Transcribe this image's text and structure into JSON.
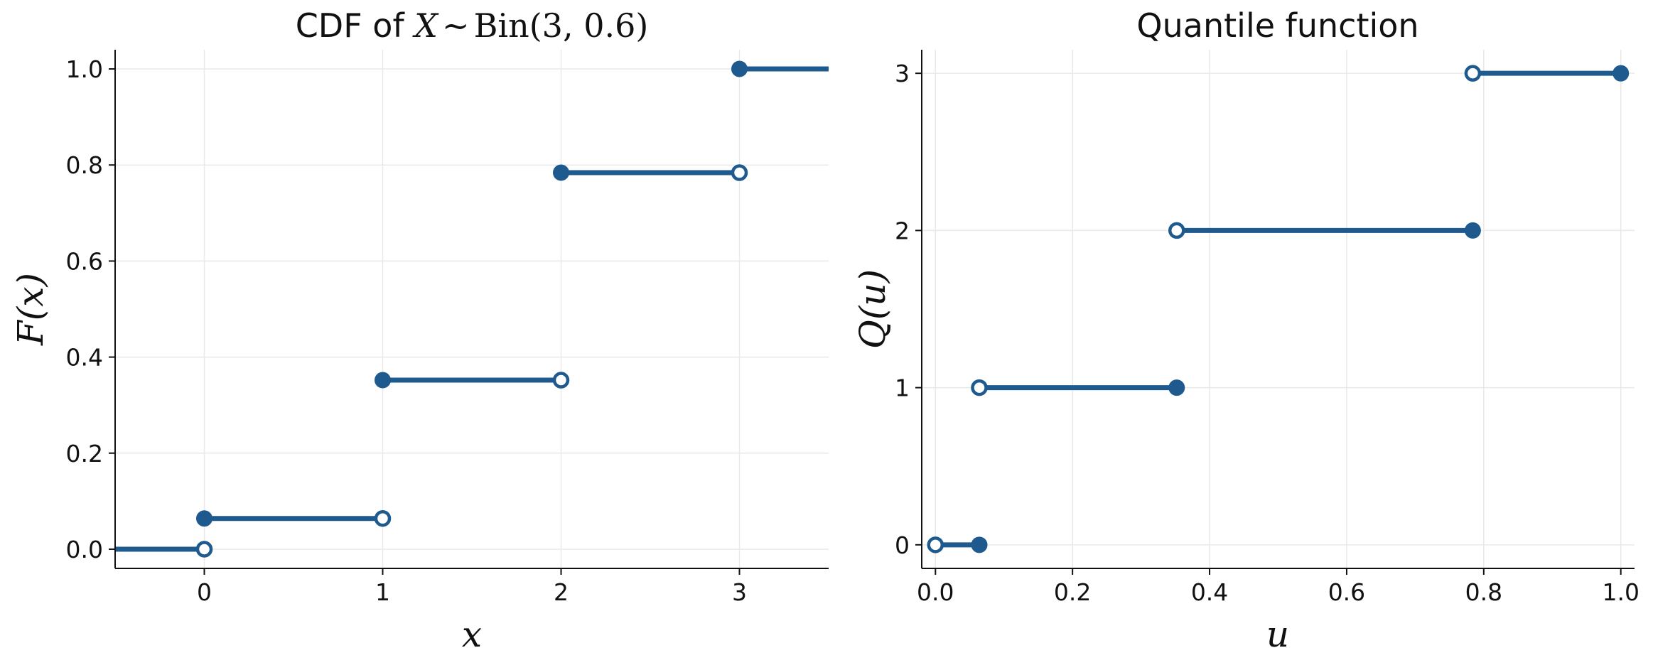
{
  "chart_data": [
    {
      "type": "line",
      "subtype": "step",
      "title_prefix": "CDF of ",
      "title_math": {
        "var": "X",
        "sim": "~",
        "dist": "Bin",
        "args": "(3, 0.6)"
      },
      "xlabel": "x",
      "ylabel": "F(x)",
      "xlim": [
        -0.5,
        3.5
      ],
      "ylim": [
        -0.04,
        1.04
      ],
      "xticks": [
        0,
        1,
        2,
        3
      ],
      "xtick_labels": [
        "0",
        "1",
        "2",
        "3"
      ],
      "yticks": [
        0.0,
        0.2,
        0.4,
        0.6,
        0.8,
        1.0
      ],
      "ytick_labels": [
        "0.0",
        "0.2",
        "0.4",
        "0.6",
        "0.8",
        "1.0"
      ],
      "grid": true,
      "color": "#1f5a8f",
      "segments": [
        {
          "x0": -0.5,
          "x1": 0,
          "y": 0.0
        },
        {
          "x0": 0,
          "x1": 1,
          "y": 0.064
        },
        {
          "x0": 1,
          "x1": 2,
          "y": 0.352
        },
        {
          "x0": 2,
          "x1": 3,
          "y": 0.784
        },
        {
          "x0": 3,
          "x1": 3.5,
          "y": 1.0
        }
      ],
      "closed_points": [
        [
          0,
          0.064
        ],
        [
          1,
          0.352
        ],
        [
          2,
          0.784
        ],
        [
          3,
          1.0
        ]
      ],
      "open_points": [
        [
          0,
          0.0
        ],
        [
          1,
          0.064
        ],
        [
          2,
          0.352
        ],
        [
          3,
          0.784
        ]
      ]
    },
    {
      "type": "line",
      "subtype": "step",
      "title": "Quantile function",
      "xlabel": "u",
      "ylabel": "Q(u)",
      "xlim": [
        -0.02,
        1.02
      ],
      "ylim": [
        -0.15,
        3.15
      ],
      "xticks": [
        0.0,
        0.2,
        0.4,
        0.6,
        0.8,
        1.0
      ],
      "xtick_labels": [
        "0.0",
        "0.2",
        "0.4",
        "0.6",
        "0.8",
        "1.0"
      ],
      "yticks": [
        0,
        1,
        2,
        3
      ],
      "ytick_labels": [
        "0",
        "1",
        "2",
        "3"
      ],
      "grid": true,
      "color": "#1f5a8f",
      "segments": [
        {
          "x0": 0.0,
          "x1": 0.064,
          "y": 0
        },
        {
          "x0": 0.064,
          "x1": 0.352,
          "y": 1
        },
        {
          "x0": 0.352,
          "x1": 0.784,
          "y": 2
        },
        {
          "x0": 0.784,
          "x1": 1.0,
          "y": 3
        }
      ],
      "closed_points": [
        [
          0.064,
          0
        ],
        [
          0.352,
          1
        ],
        [
          0.784,
          2
        ],
        [
          1.0,
          3
        ]
      ],
      "open_points": [
        [
          0.0,
          0
        ],
        [
          0.064,
          1
        ],
        [
          0.352,
          2
        ],
        [
          0.784,
          3
        ]
      ]
    }
  ]
}
